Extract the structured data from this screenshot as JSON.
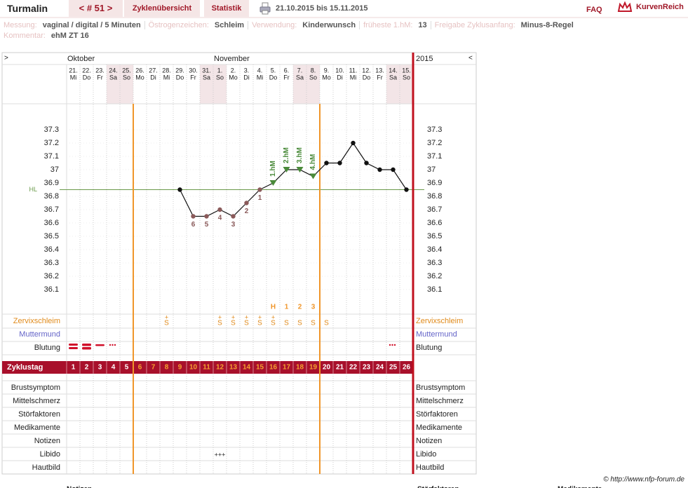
{
  "header": {
    "title": "Turmalin",
    "cycle_nav": "< # 51 >",
    "tabs": [
      "Zyklenübersicht",
      "Statistik"
    ],
    "date_range": "21.10.2015 bis 15.11.2015",
    "faq": "FAQ",
    "brand": "KurvenReich"
  },
  "info": {
    "fields": [
      {
        "label": "Messung:",
        "value": "vaginal / digital / 5 Minuten"
      },
      {
        "label": "Östrogenzeichen:",
        "value": "Schleim"
      },
      {
        "label": "Verwendung:",
        "value": "Kinderwunsch"
      },
      {
        "label": "früheste 1.hM:",
        "value": 13
      },
      {
        "label": "Freigabe Zyklusanfang:",
        "value": "Minus-8-Regel"
      }
    ],
    "comment_label": "Kommentar:",
    "comment": "ehM ZT 16"
  },
  "chart": {
    "nav_prev": ">",
    "nav_next": "<",
    "year": "2015",
    "month_labels": [
      "Oktober",
      null,
      null,
      null,
      null,
      null,
      null,
      null,
      null,
      null,
      null,
      "November",
      null,
      null,
      null,
      null,
      null,
      null,
      null,
      null,
      null,
      null,
      null,
      null,
      null,
      null
    ],
    "dates": [
      "21.",
      "22.",
      "23.",
      "24.",
      "25.",
      "26.",
      "27.",
      "28.",
      "29.",
      "30.",
      "31.",
      "1.",
      "2.",
      "3.",
      "4.",
      "5.",
      "6.",
      "7.",
      "8.",
      "9.",
      "10.",
      "11.",
      "12.",
      "13.",
      "14.",
      "15."
    ],
    "weekdays": [
      "Mi",
      "Do",
      "Fr",
      "Sa",
      "So",
      "Mo",
      "Di",
      "Mi",
      "Do",
      "Fr",
      "Sa",
      "So",
      "Mo",
      "Di",
      "Mi",
      "Do",
      "Fr",
      "Sa",
      "So",
      "Mo",
      "Di",
      "Mi",
      "Do",
      "Fr",
      "Sa",
      "So"
    ],
    "temperature": {
      "ylim": [
        35.9,
        37.5
      ],
      "yticks": [
        37.3,
        37.2,
        37.1,
        37,
        36.9,
        36.8,
        36.7,
        36.6,
        36.5,
        36.4,
        36.3,
        36.2,
        36.1
      ],
      "values": [
        null,
        null,
        null,
        null,
        null,
        null,
        null,
        null,
        36.85,
        36.65,
        36.65,
        36.7,
        36.65,
        36.75,
        36.85,
        36.9,
        37.0,
        37.0,
        36.95,
        37.05,
        37.05,
        37.2,
        37.05,
        37.0,
        37.0,
        36.85
      ],
      "point_labels": [
        null,
        null,
        null,
        null,
        null,
        null,
        null,
        null,
        null,
        "6",
        "5",
        "4",
        "3",
        "2",
        "1",
        null,
        null,
        null,
        null,
        null,
        null,
        null,
        null,
        null,
        null,
        null
      ],
      "hm_labels": [
        null,
        null,
        null,
        null,
        null,
        null,
        null,
        null,
        null,
        null,
        null,
        null,
        null,
        null,
        null,
        "1.hM",
        "2.hM",
        "3.hM",
        "4.hM",
        null,
        null,
        null,
        null,
        null,
        null,
        null
      ],
      "hl": 36.85,
      "hl_label": "HL"
    },
    "peak_labels": [
      null,
      null,
      null,
      null,
      null,
      null,
      null,
      null,
      null,
      null,
      null,
      null,
      null,
      null,
      null,
      "H",
      "1",
      "2",
      "3",
      null,
      null,
      null,
      null,
      null,
      null,
      null
    ],
    "mucus_plus": [
      null,
      null,
      null,
      null,
      null,
      null,
      null,
      "+",
      null,
      null,
      null,
      "+",
      "+",
      "+",
      "+",
      "+",
      null,
      null,
      null,
      null,
      null,
      null,
      null,
      null,
      null,
      null
    ],
    "mucus": [
      null,
      null,
      null,
      null,
      null,
      null,
      null,
      "S",
      null,
      null,
      null,
      "S",
      "S",
      "S",
      "S",
      "S",
      "S",
      "S",
      "S",
      "S",
      null,
      null,
      null,
      null,
      null,
      null
    ],
    "libido": [
      null,
      null,
      null,
      null,
      null,
      null,
      null,
      null,
      null,
      null,
      null,
      "+++",
      null,
      null,
      null,
      null,
      null,
      null,
      null,
      null,
      null,
      null,
      null,
      null,
      null,
      null
    ],
    "cycle_days": [
      1,
      2,
      3,
      4,
      5,
      6,
      7,
      8,
      9,
      10,
      11,
      12,
      13,
      14,
      15,
      16,
      17,
      18,
      19,
      20,
      21,
      22,
      23,
      24,
      25,
      26
    ],
    "fertile_start": 6,
    "fertile_end": 19,
    "row_labels": {
      "mucus": "Zervixschleim",
      "cervix": "Muttermund",
      "bleeding": "Blutung",
      "cycle": "Zyklustag",
      "lower": [
        "Brustsymptom",
        "Mittelschmerz",
        "Störfaktoren",
        "Medikamente",
        "Notizen",
        "Libido",
        "Hautbild"
      ]
    }
  },
  "footer": {
    "copyright": "© http://www.nfp-forum.de",
    "sections": [
      "Notizen",
      "Störfaktoren",
      "Medikamente"
    ]
  }
}
